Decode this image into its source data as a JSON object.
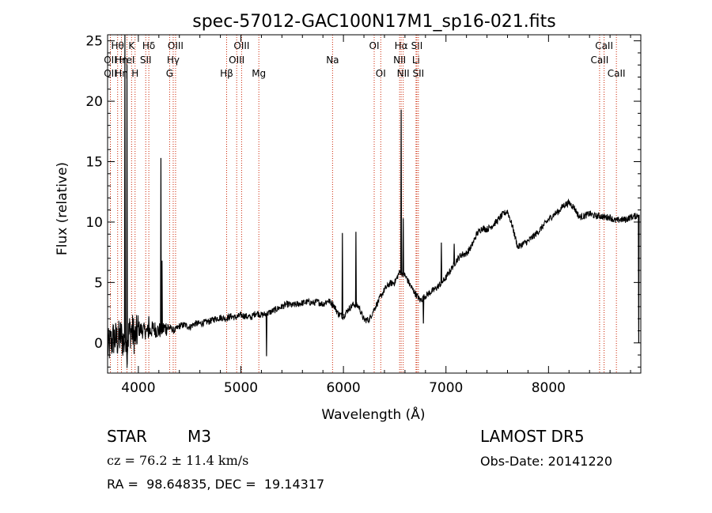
{
  "chart_data": {
    "type": "line",
    "title": "spec-57012-GAC100N17M1_sp16-021.fits",
    "xlabel": "Wavelength (Å)",
    "ylabel": "Flux (relative)",
    "xlim": [
      3700,
      8900
    ],
    "ylim": [
      -2.5,
      25.5
    ],
    "xticks": [
      4000,
      5000,
      6000,
      7000,
      8000
    ],
    "yticks": [
      0,
      5,
      10,
      15,
      20,
      25
    ],
    "grid": false,
    "series": [
      {
        "x": [
          3700,
          3760,
          3800,
          3830,
          3860,
          3880,
          3890,
          3900,
          3920,
          3950,
          3970,
          4000,
          4050,
          4100,
          4150,
          4200,
          4250,
          4300,
          4350,
          4400,
          4450,
          4500,
          4550,
          4600,
          4650,
          4700,
          4750,
          4800,
          4850,
          4900,
          4950,
          5000,
          5050,
          5100,
          5150,
          5200,
          5250,
          5300,
          5350,
          5400,
          5450,
          5500,
          5550,
          5600,
          5650,
          5700,
          5750,
          5800,
          5850,
          5900,
          5950,
          6000,
          6050,
          6100,
          6150,
          6200,
          6250,
          6300,
          6350,
          6400,
          6450,
          6500,
          6550,
          6600,
          6650,
          6700,
          6750,
          6800,
          6850,
          6900,
          6950,
          7000,
          7050,
          7100,
          7150,
          7200,
          7250,
          7300,
          7350,
          7400,
          7450,
          7500,
          7550,
          7600,
          7650,
          7700,
          7750,
          7800,
          7850,
          7900,
          7950,
          8000,
          8050,
          8100,
          8150,
          8200,
          8250,
          8300,
          8350,
          8400,
          8450,
          8500,
          8550,
          8600,
          8650,
          8700,
          8750,
          8800,
          8850,
          8880
        ],
        "y": [
          -0.5,
          0.4,
          0.2,
          0.6,
          0.0,
          0.9,
          -0.5,
          0.5,
          1.1,
          0.8,
          0.4,
          1.2,
          1.0,
          0.9,
          1.2,
          1.0,
          1.2,
          1.3,
          1.0,
          1.4,
          1.5,
          1.3,
          1.6,
          1.6,
          1.7,
          1.8,
          2.0,
          2.1,
          2.0,
          2.2,
          2.1,
          2.3,
          2.2,
          2.1,
          2.5,
          2.3,
          2.4,
          2.6,
          2.8,
          3.0,
          3.2,
          3.1,
          3.2,
          3.3,
          3.4,
          3.3,
          3.4,
          3.2,
          3.5,
          3.2,
          2.4,
          2.2,
          2.8,
          3.2,
          3.0,
          1.9,
          1.9,
          2.8,
          3.6,
          4.4,
          4.9,
          5.0,
          5.9,
          5.6,
          4.8,
          4.1,
          3.5,
          3.9,
          4.2,
          4.5,
          4.9,
          5.4,
          6.1,
          6.8,
          7.3,
          7.4,
          8.0,
          9.0,
          9.5,
          9.4,
          9.7,
          10.1,
          10.6,
          10.9,
          9.6,
          7.9,
          8.2,
          8.4,
          8.8,
          9.2,
          9.7,
          10.2,
          10.6,
          10.9,
          11.4,
          11.6,
          11.2,
          10.4,
          10.5,
          10.7,
          10.5,
          10.5,
          10.4,
          10.4,
          10.1,
          10.2,
          10.2,
          10.4,
          10.5,
          10.6
        ]
      }
    ],
    "emission_spikes": [
      {
        "x": 3869,
        "y": 25.5
      },
      {
        "x": 3889,
        "y": 23.0
      },
      {
        "x": 4102,
        "y": 2.2
      },
      {
        "x": 4220,
        "y": 15.3
      },
      {
        "x": 4231,
        "y": 6.8
      },
      {
        "x": 5890,
        "y": 2.9
      },
      {
        "x": 5990,
        "y": 9.1
      },
      {
        "x": 6122,
        "y": 9.2
      },
      {
        "x": 6563,
        "y": 19.3
      },
      {
        "x": 6583,
        "y": 10.3
      },
      {
        "x": 6955,
        "y": 8.3
      },
      {
        "x": 7080,
        "y": 8.2
      }
    ],
    "absorption_dips": [
      {
        "x": 3890,
        "y": -1.8
      },
      {
        "x": 5250,
        "y": -1.1
      },
      {
        "x": 6780,
        "y": 1.6
      },
      {
        "x": 8880,
        "y": 0.0
      }
    ],
    "line_markers": [
      {
        "label": "Hθ",
        "x": 3798,
        "row": 0
      },
      {
        "label": "K",
        "x": 3934,
        "row": 0
      },
      {
        "label": "Hδ",
        "x": 4102,
        "row": 0
      },
      {
        "label": "OII",
        "x": 3727,
        "row": 1
      },
      {
        "label": "Hη",
        "x": 3835,
        "row": 1
      },
      {
        "label": "HeI",
        "x": 3889,
        "row": 1
      },
      {
        "label": "SII",
        "x": 4072,
        "row": 1
      },
      {
        "label": "OII",
        "x": 3727,
        "row": 2
      },
      {
        "label": "Hη",
        "x": 3835,
        "row": 2
      },
      {
        "label": "H",
        "x": 3968,
        "row": 2
      },
      {
        "label": "OIII",
        "x": 4363,
        "row": 0
      },
      {
        "label": "Hγ",
        "x": 4340,
        "row": 1
      },
      {
        "label": "G",
        "x": 4305,
        "row": 2
      },
      {
        "label": "OIII",
        "x": 5007,
        "row": 0
      },
      {
        "label": "OIII",
        "x": 4959,
        "row": 1
      },
      {
        "label": "Hβ",
        "x": 4861,
        "row": 2
      },
      {
        "label": "Mg",
        "x": 5175,
        "row": 2
      },
      {
        "label": "Na",
        "x": 5894,
        "row": 1
      },
      {
        "label": "OI",
        "x": 6300,
        "row": 0
      },
      {
        "label": "OI",
        "x": 6364,
        "row": 2
      },
      {
        "label": "Hα",
        "x": 6563,
        "row": 0
      },
      {
        "label": "NII",
        "x": 6548,
        "row": 1
      },
      {
        "label": "NII",
        "x": 6583,
        "row": 2
      },
      {
        "label": "SII",
        "x": 6716,
        "row": 0
      },
      {
        "label": "Li",
        "x": 6708,
        "row": 1
      },
      {
        "label": "SII",
        "x": 6731,
        "row": 2
      },
      {
        "label": "CaII",
        "x": 8542,
        "row": 0
      },
      {
        "label": "CaII",
        "x": 8498,
        "row": 1
      },
      {
        "label": "CaII",
        "x": 8662,
        "row": 2
      }
    ]
  },
  "info": {
    "obj_class": "STAR",
    "subclass": "M3",
    "survey": "LAMOST DR5",
    "cz": "cz = 76.2 ± 11.4 km/s",
    "obs_date": "Obs-Date: 20141220",
    "coords": "RA =  98.64835, DEC =  19.14317"
  },
  "colors": {
    "spectrum": "#000000",
    "line_marker": "#cc2200",
    "axes": "#000000",
    "background": "#ffffff"
  }
}
